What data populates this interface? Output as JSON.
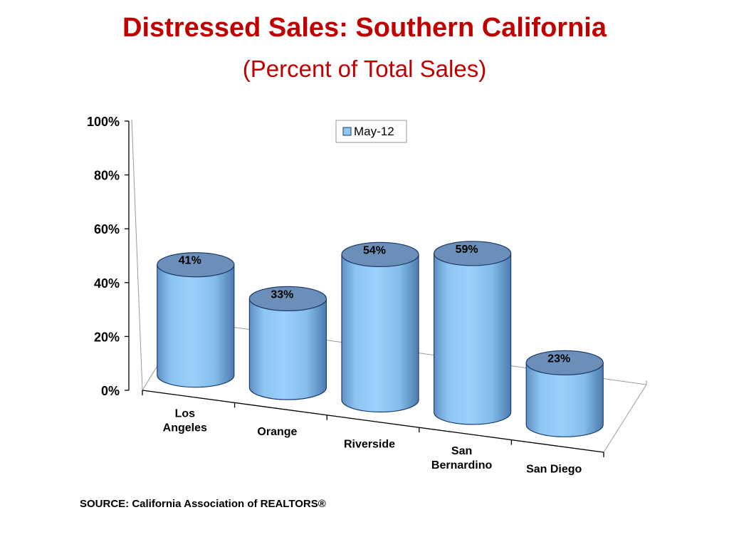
{
  "title": "Distressed Sales: Southern California",
  "subtitle": "(Percent of Total Sales)",
  "source": "SOURCE: California Association of REALTORS®",
  "colors": {
    "title": "#c00000",
    "bar_body": "#8ec8f5",
    "bar_top": "#6b8fb8",
    "bar_edge": "#1f3d6b"
  },
  "chart_data": {
    "type": "bar",
    "style": "3d-cylinder",
    "categories": [
      "Los Angeles",
      "Orange",
      "Riverside",
      "San Bernardino",
      "San Diego"
    ],
    "category_labels": [
      [
        "Los",
        "Angeles"
      ],
      [
        "Orange"
      ],
      [
        "Riverside"
      ],
      [
        "San",
        "Bernardino"
      ],
      [
        "San Diego"
      ]
    ],
    "series": [
      {
        "name": "May-12",
        "values": [
          41,
          33,
          54,
          59,
          23
        ],
        "data_labels": [
          "41%",
          "33%",
          "54%",
          "59%",
          "23%"
        ]
      }
    ],
    "yticks": [
      0,
      20,
      40,
      60,
      80,
      100
    ],
    "ytick_labels": [
      "0%",
      "20%",
      "40%",
      "60%",
      "80%",
      "100%"
    ],
    "ylim": [
      0,
      100
    ],
    "grid": false,
    "legend_position": "top-right"
  }
}
